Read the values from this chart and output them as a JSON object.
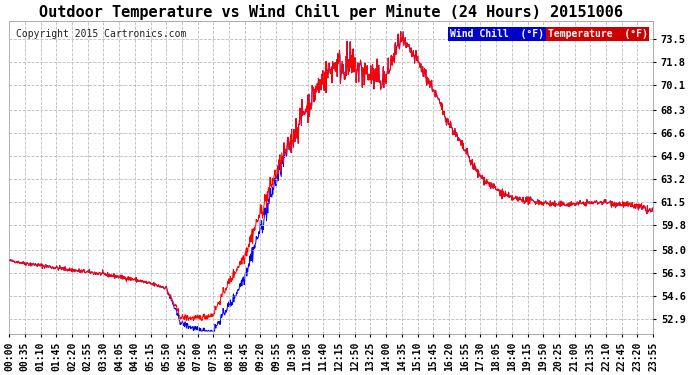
{
  "title": "Outdoor Temperature vs Wind Chill per Minute (24 Hours) 20151006",
  "copyright": "Copyright 2015 Cartronics.com",
  "ylabel_yticks": [
    52.9,
    54.6,
    56.3,
    58.0,
    59.8,
    61.5,
    63.2,
    64.9,
    66.6,
    68.3,
    70.1,
    71.8,
    73.5
  ],
  "ylim": [
    51.8,
    74.8
  ],
  "xtick_labels": [
    "00:00",
    "00:35",
    "01:10",
    "01:45",
    "02:20",
    "02:55",
    "03:30",
    "04:05",
    "04:40",
    "05:15",
    "05:50",
    "06:25",
    "07:00",
    "07:35",
    "08:10",
    "08:45",
    "09:20",
    "09:55",
    "10:30",
    "11:05",
    "11:40",
    "12:15",
    "12:50",
    "13:25",
    "14:00",
    "14:35",
    "15:10",
    "15:45",
    "16:20",
    "16:55",
    "17:30",
    "18:05",
    "18:40",
    "19:15",
    "19:50",
    "20:25",
    "21:00",
    "21:35",
    "22:10",
    "22:45",
    "23:20",
    "23:55"
  ],
  "temp_color": "#ff0000",
  "wind_chill_color": "#0000ff",
  "background_color": "#ffffff",
  "plot_bg_color": "#ffffff",
  "grid_color": "#bbbbbb",
  "title_fontsize": 11,
  "copyright_fontsize": 7,
  "tick_fontsize": 7.5,
  "legend_wind_chill_bg": "#0000cc",
  "legend_temp_bg": "#cc0000",
  "legend_fontsize": 7
}
